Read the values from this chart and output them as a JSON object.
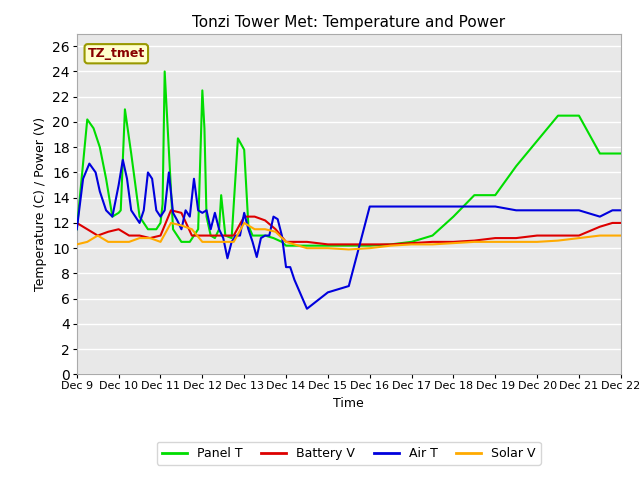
{
  "title": "Tonzi Tower Met: Temperature and Power",
  "xlabel": "Time",
  "ylabel": "Temperature (C) / Power (V)",
  "annotation": "TZ_tmet",
  "ylim": [
    0,
    27
  ],
  "yticks": [
    0,
    2,
    4,
    6,
    8,
    10,
    12,
    14,
    16,
    18,
    20,
    22,
    24,
    26
  ],
  "figsize": [
    6.4,
    4.8
  ],
  "dpi": 100,
  "title_fontsize": 11,
  "axis_fontsize": 9,
  "tick_fontsize": 8,
  "legend_labels": [
    "Panel T",
    "Battery V",
    "Air T",
    "Solar V"
  ],
  "legend_colors": [
    "#00dd00",
    "#dd0000",
    "#0000dd",
    "#ffaa00"
  ],
  "x_tick_labels": [
    "Dec 9",
    "Dec 10",
    "Dec 11",
    "Dec 12",
    "Dec 13",
    "Dec 14",
    "Dec 15",
    "Dec 16",
    "Dec 17",
    "Dec 18",
    "Dec 19",
    "Dec 20",
    "Dec 21",
    "Dec 22"
  ],
  "panel_t": {
    "x": [
      0,
      0.25,
      0.4,
      0.55,
      0.7,
      0.85,
      1.0,
      1.05,
      1.15,
      1.3,
      1.5,
      1.7,
      1.9,
      2.0,
      2.05,
      2.1,
      2.3,
      2.5,
      2.7,
      2.9,
      3.0,
      3.05,
      3.1,
      3.2,
      3.3,
      3.4,
      3.45,
      3.55,
      3.7,
      3.85,
      4.0,
      4.1,
      4.2,
      4.3,
      4.5,
      4.7,
      4.9,
      5.0,
      5.5,
      6.0,
      6.5,
      7.0,
      7.5,
      8.0,
      8.5,
      9.0,
      9.5,
      10.0,
      10.5,
      11.0,
      11.5,
      12.0,
      12.5,
      12.8,
      13.0
    ],
    "y": [
      11.5,
      20.2,
      19.5,
      18.0,
      15.5,
      12.5,
      12.8,
      13.0,
      21.0,
      17.5,
      12.5,
      11.5,
      11.5,
      12.0,
      13.5,
      24.0,
      11.5,
      10.5,
      10.5,
      11.5,
      22.5,
      19.5,
      12.5,
      11.0,
      10.8,
      11.5,
      14.2,
      11.0,
      10.8,
      18.7,
      17.8,
      11.8,
      11.0,
      11.0,
      11.0,
      10.8,
      10.5,
      10.2,
      10.2,
      10.2,
      10.2,
      10.2,
      10.3,
      10.5,
      11.0,
      12.5,
      14.2,
      14.2,
      16.5,
      18.5,
      20.5,
      20.5,
      17.5,
      17.5,
      17.5
    ]
  },
  "battery_v": {
    "x": [
      0,
      0.25,
      0.5,
      0.75,
      1.0,
      1.25,
      1.5,
      1.75,
      2.0,
      2.25,
      2.5,
      2.75,
      3.0,
      3.25,
      3.5,
      3.75,
      4.0,
      4.25,
      4.5,
      4.75,
      5.0,
      5.5,
      6.0,
      6.5,
      7.0,
      7.5,
      8.0,
      8.5,
      9.0,
      9.5,
      10.0,
      10.5,
      11.0,
      11.5,
      12.0,
      12.5,
      12.8,
      13.0
    ],
    "y": [
      12.0,
      11.5,
      11.0,
      11.3,
      11.5,
      11.0,
      11.0,
      10.8,
      11.0,
      13.0,
      12.8,
      11.0,
      11.0,
      11.0,
      11.0,
      11.0,
      12.5,
      12.5,
      12.2,
      11.5,
      10.5,
      10.5,
      10.3,
      10.3,
      10.3,
      10.3,
      10.4,
      10.5,
      10.5,
      10.6,
      10.8,
      10.8,
      11.0,
      11.0,
      11.0,
      11.7,
      12.0,
      12.0
    ]
  },
  "air_t": {
    "x": [
      0,
      0.15,
      0.3,
      0.45,
      0.55,
      0.7,
      0.85,
      1.0,
      1.1,
      1.2,
      1.3,
      1.4,
      1.5,
      1.6,
      1.7,
      1.8,
      1.9,
      2.0,
      2.1,
      2.2,
      2.3,
      2.4,
      2.5,
      2.6,
      2.7,
      2.8,
      2.9,
      3.0,
      3.1,
      3.2,
      3.3,
      3.4,
      3.5,
      3.6,
      3.7,
      3.8,
      3.9,
      4.0,
      4.1,
      4.2,
      4.3,
      4.4,
      4.5,
      4.6,
      4.7,
      4.8,
      4.9,
      5.0,
      5.1,
      5.2,
      5.5,
      6.0,
      6.5,
      7.0,
      7.5,
      8.0,
      8.5,
      9.0,
      9.5,
      10.0,
      10.5,
      11.0,
      11.5,
      12.0,
      12.5,
      12.8,
      13.0
    ],
    "y": [
      11.5,
      15.5,
      16.7,
      16.0,
      14.5,
      13.0,
      12.5,
      15.0,
      17.0,
      15.5,
      13.0,
      12.5,
      12.0,
      13.0,
      16.0,
      15.5,
      13.0,
      12.5,
      13.0,
      16.0,
      12.8,
      12.2,
      11.5,
      13.0,
      12.5,
      15.5,
      13.0,
      12.8,
      13.0,
      11.5,
      12.8,
      11.5,
      10.8,
      9.2,
      10.5,
      11.0,
      11.0,
      12.8,
      11.5,
      10.5,
      9.3,
      10.8,
      11.0,
      11.0,
      12.5,
      12.3,
      11.0,
      8.5,
      8.5,
      7.5,
      5.2,
      6.5,
      7.0,
      13.3,
      13.3,
      13.3,
      13.3,
      13.3,
      13.3,
      13.3,
      13.0,
      13.0,
      13.0,
      13.0,
      12.5,
      13.0,
      13.0
    ]
  },
  "solar_v": {
    "x": [
      0,
      0.25,
      0.5,
      0.75,
      1.0,
      1.25,
      1.5,
      1.75,
      2.0,
      2.25,
      2.5,
      2.75,
      3.0,
      3.25,
      3.5,
      3.75,
      4.0,
      4.25,
      4.5,
      4.75,
      5.0,
      5.5,
      6.0,
      6.5,
      7.0,
      7.5,
      8.0,
      8.5,
      9.0,
      9.5,
      10.0,
      10.5,
      11.0,
      11.5,
      12.0,
      12.5,
      12.8,
      13.0
    ],
    "y": [
      10.3,
      10.5,
      11.0,
      10.5,
      10.5,
      10.5,
      10.8,
      10.8,
      10.5,
      12.0,
      11.8,
      11.5,
      10.5,
      10.5,
      10.5,
      10.5,
      12.0,
      11.5,
      11.5,
      11.3,
      10.5,
      10.0,
      10.0,
      9.9,
      10.0,
      10.2,
      10.3,
      10.3,
      10.4,
      10.5,
      10.5,
      10.5,
      10.5,
      10.6,
      10.8,
      11.0,
      11.0,
      11.0
    ]
  }
}
